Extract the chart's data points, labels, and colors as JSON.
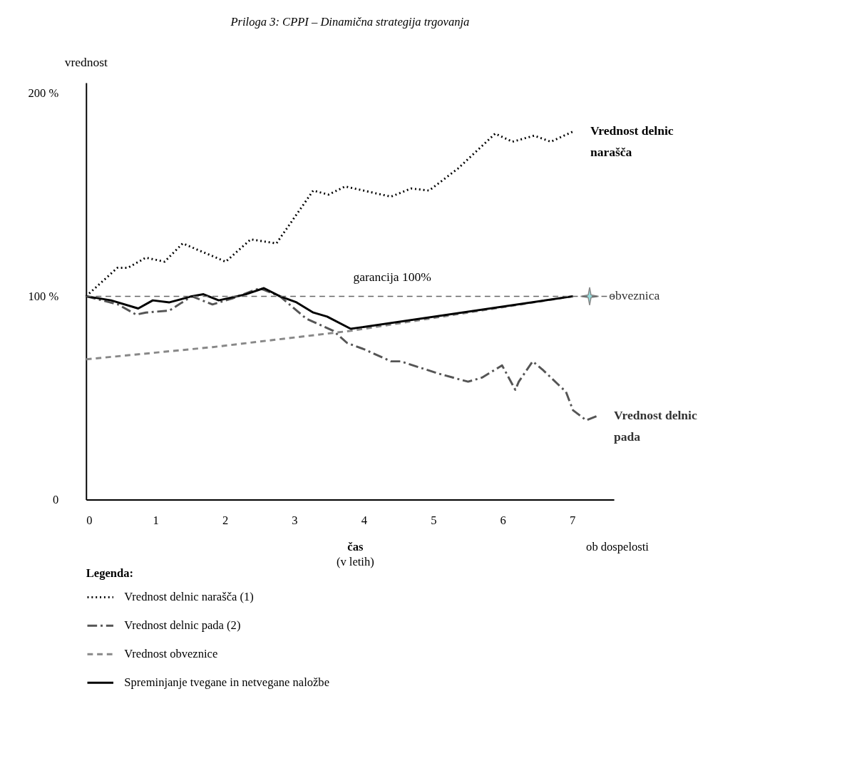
{
  "chart_data": {
    "type": "line",
    "title": "Priloga 3: CPPI – Dinamična strategija trgovanja",
    "ylabel": "vrednost",
    "xlabel": "čas (v letih)",
    "legend_title": "Legenda:",
    "legend": "bottom",
    "grid": false,
    "xlim": [
      0,
      7.6
    ],
    "xticks": [
      0,
      1,
      2,
      3,
      4,
      5,
      6,
      7
    ],
    "ylim": [
      0,
      205
    ],
    "yticks": [
      {
        "value": 0,
        "label": "0"
      },
      {
        "value": 100,
        "label": "100 %"
      },
      {
        "value": 200,
        "label": "200 %"
      }
    ],
    "series": [
      {
        "name": "Vrednost delnic narašča (1)",
        "color": "#000000",
        "line_style": "dotted",
        "x": [
          0,
          0.45,
          0.6,
          0.86,
          1.13,
          1.39,
          2.01,
          2.37,
          2.74,
          3.27,
          3.49,
          3.73,
          4.39,
          4.68,
          4.94,
          5.36,
          5.89,
          6.14,
          6.45,
          6.69,
          7.01
        ],
        "values": [
          100,
          114,
          114,
          119,
          117,
          126,
          117,
          128,
          126,
          152,
          150,
          154,
          149,
          153,
          152,
          163,
          180,
          176,
          179,
          176,
          181
        ]
      },
      {
        "name": "Vrednost delnic pada (2)",
        "color": "#555555",
        "line_style": "dashdot",
        "x": [
          0,
          0.46,
          0.72,
          0.86,
          1.2,
          1.52,
          1.82,
          2.11,
          2.5,
          2.79,
          3.17,
          3.56,
          3.76,
          4.0,
          4.39,
          4.53,
          5.07,
          5.5,
          5.7,
          5.99,
          6.18,
          6.23,
          6.43,
          6.57,
          6.91,
          7.01,
          7.2,
          7.35
        ],
        "values": [
          100,
          96,
          91,
          92,
          93,
          100,
          96,
          99,
          104,
          100,
          89,
          83,
          77,
          74,
          68,
          68,
          62,
          58,
          60,
          66,
          54,
          58,
          68,
          64,
          53,
          44,
          39,
          41
        ]
      },
      {
        "name": "Vrednost obveznice",
        "color": "#888888",
        "line_style": "dashed",
        "x": [
          0,
          1.82,
          3.81,
          7.01
        ],
        "values": [
          69,
          75,
          83,
          100
        ]
      },
      {
        "name": "Spreminjanje tvegane in netvegane naložbe",
        "color": "#000000",
        "line_style": "solid",
        "x": [
          0,
          0.36,
          0.75,
          0.96,
          1.2,
          1.52,
          1.69,
          1.91,
          2.3,
          2.56,
          2.79,
          3.03,
          3.27,
          3.47,
          3.81,
          7.01
        ],
        "values": [
          100,
          98,
          94,
          98,
          97,
          100,
          101,
          98,
          101,
          104,
          100,
          97,
          92,
          90,
          84,
          100
        ]
      },
      {
        "type": "scatter",
        "marker": "star",
        "color": "#66cccc",
        "x": [
          7.25
        ],
        "values": [
          100
        ]
      }
    ],
    "ref_lines": [
      {
        "axis": "y",
        "value": 100,
        "label": "garancija 100%",
        "color": "#666666",
        "line_style": "dashed"
      }
    ],
    "annotations": [
      {
        "text": "Vrednost delnic narašča",
        "x": 7.01,
        "y": 181
      },
      {
        "text": "Vrednost delnic pada",
        "x": 7.35,
        "y": 41
      },
      {
        "text": "obveznica",
        "x": 7.25,
        "y": 100
      },
      "ob dospelosti"
    ]
  }
}
